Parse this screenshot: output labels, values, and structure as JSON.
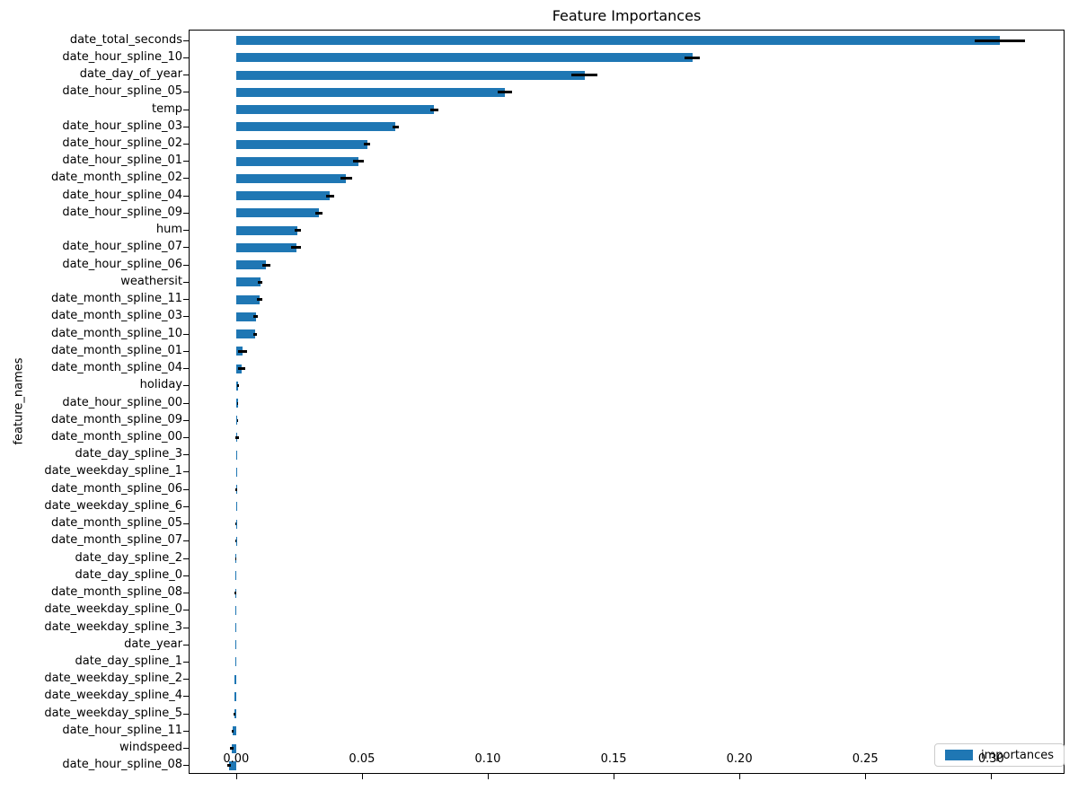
{
  "figure": {
    "title": "Feature Importances",
    "ylabel": "feature_names",
    "legend": {
      "label": "importances",
      "swatch_color": "#1f77b4"
    }
  },
  "chart_data": {
    "type": "bar",
    "orientation": "horizontal",
    "title": "Feature Importances",
    "xlabel": "",
    "ylabel": "feature_names",
    "legend_entries": [
      "importances"
    ],
    "legend_position": "lower right",
    "bar_color": "#1f77b4",
    "error_color": "#000000",
    "grid": false,
    "xlim": [
      -0.0185,
      0.3288
    ],
    "xticks": [
      0.0,
      0.05,
      0.1,
      0.15,
      0.2,
      0.25,
      0.3
    ],
    "xtick_labels": [
      "0.00",
      "0.05",
      "0.10",
      "0.15",
      "0.20",
      "0.25",
      "0.30"
    ],
    "categories": [
      "date_total_seconds",
      "date_hour_spline_10",
      "date_day_of_year",
      "date_hour_spline_05",
      "temp",
      "date_hour_spline_03",
      "date_hour_spline_02",
      "date_hour_spline_01",
      "date_month_spline_02",
      "date_hour_spline_04",
      "date_hour_spline_09",
      "hum",
      "date_hour_spline_07",
      "date_hour_spline_06",
      "weathersit",
      "date_month_spline_11",
      "date_month_spline_03",
      "date_month_spline_10",
      "date_month_spline_01",
      "date_month_spline_04",
      "holiday",
      "date_hour_spline_00",
      "date_month_spline_09",
      "date_month_spline_00",
      "date_day_spline_3",
      "date_weekday_spline_1",
      "date_month_spline_06",
      "date_weekday_spline_6",
      "date_month_spline_05",
      "date_month_spline_07",
      "date_day_spline_2",
      "date_day_spline_0",
      "date_month_spline_08",
      "date_weekday_spline_0",
      "date_weekday_spline_3",
      "date_year",
      "date_day_spline_1",
      "date_weekday_spline_2",
      "date_weekday_spline_4",
      "date_weekday_spline_5",
      "date_hour_spline_11",
      "windspeed",
      "date_hour_spline_08"
    ],
    "series": [
      {
        "name": "importances",
        "values": [
          0.3035,
          0.1813,
          0.1385,
          0.1069,
          0.0787,
          0.0634,
          0.052,
          0.0485,
          0.0437,
          0.0373,
          0.0329,
          0.0245,
          0.0238,
          0.0119,
          0.0096,
          0.0092,
          0.0079,
          0.0075,
          0.0026,
          0.0022,
          0.0007,
          0.0006,
          0.0005,
          0.0003,
          0.0002,
          0.0002,
          0.0001,
          0.0,
          -0.0001,
          -0.0001,
          -0.0002,
          -0.0002,
          -0.0002,
          -0.0003,
          -0.0003,
          -0.0003,
          -0.0004,
          -0.0005,
          -0.0005,
          -0.0007,
          -0.0014,
          -0.0017,
          -0.0027
        ],
        "errors": [
          0.01,
          0.003,
          0.0052,
          0.0028,
          0.0016,
          0.0014,
          0.0014,
          0.0021,
          0.0023,
          0.0015,
          0.0014,
          0.0013,
          0.0021,
          0.0016,
          0.0008,
          0.0011,
          0.0009,
          0.0008,
          0.0017,
          0.0013,
          0.0003,
          0.0002,
          0.0002,
          0.0007,
          0.0,
          0.0,
          0.0004,
          0.0,
          0.0003,
          0.0002,
          0.0002,
          0.0,
          0.0003,
          0.0,
          0.0,
          0.0,
          0.0,
          0.0,
          0.0,
          0.0003,
          0.0005,
          0.0006,
          0.0008
        ]
      }
    ]
  }
}
